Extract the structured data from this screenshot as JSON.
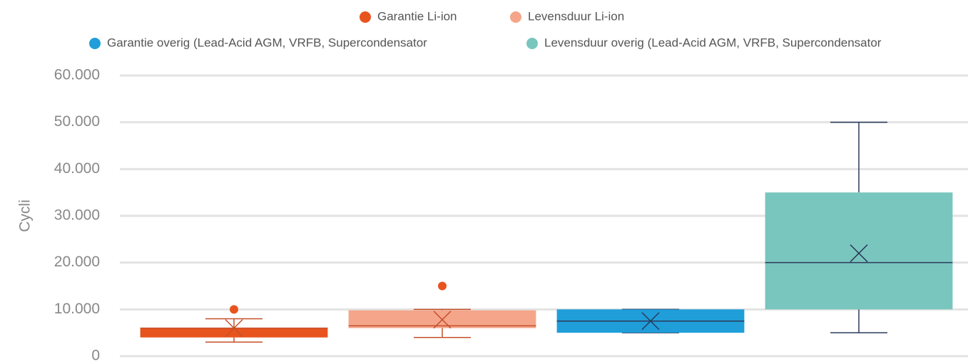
{
  "chart_data": {
    "type": "box",
    "ylabel": "Cycli",
    "ylim": [
      0,
      60000
    ],
    "yticks": [
      0,
      {
        "value": 10000,
        "label": "10.000"
      },
      {
        "value": 20000,
        "label": "20.000"
      },
      {
        "value": 30000,
        "label": "30.000"
      },
      {
        "value": 40000,
        "label": "40.000"
      },
      {
        "value": 50000,
        "label": "50.000"
      },
      {
        "value": 60000,
        "label": "60.000"
      }
    ],
    "grid": true,
    "legend": "top",
    "series": [
      {
        "name": "Garantie Li-ion",
        "color": "#e8541e",
        "line_color": "#c4502a",
        "min": 3000,
        "q1": 4000,
        "median": 6000,
        "q3": 6000,
        "max": 8000,
        "mean": 6000,
        "outliers": [
          10000
        ]
      },
      {
        "name": "Levensduur Li-ion",
        "color": "#f4a58a",
        "line_color": "#c4502a",
        "min": 4000,
        "q1": 6000,
        "median": 6500,
        "q3": 9800,
        "max": 10000,
        "mean": 7800,
        "outliers": [
          15000
        ]
      },
      {
        "name": "Garantie overig (Lead-Acid AGM, VRFB, Supercondensator",
        "color": "#1f9ed9",
        "line_color": "#2b3a5c",
        "min": 5000,
        "q1": 5000,
        "median": 7500,
        "q3": 10000,
        "max": 10000,
        "mean": 7500,
        "outliers": []
      },
      {
        "name": "Levensduur overig (Lead-Acid AGM, VRFB, Supercondensator",
        "color": "#79c6be",
        "line_color": "#2b3a5c",
        "min": 5000,
        "q1": 10000,
        "median": 20000,
        "q3": 35000,
        "max": 50000,
        "mean": 22000,
        "outliers": []
      }
    ]
  }
}
